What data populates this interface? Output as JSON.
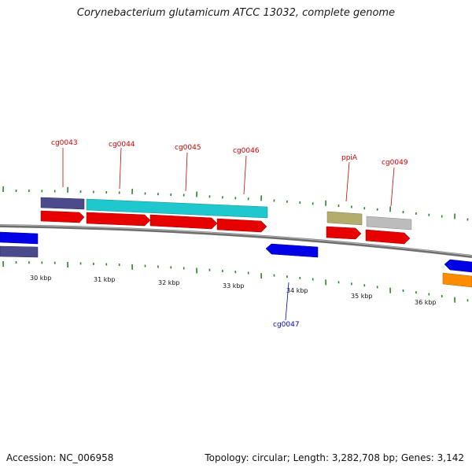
{
  "header": {
    "title": "Corynebacterium glutamicum ATCC 13032, complete genome"
  },
  "footer": {
    "accession": "Accession: NC_006958",
    "topology": "Topology: circular; Length: 3,282,708 bp; Genes: 3,142"
  },
  "colors": {
    "backbone": "#6e6e6e",
    "cds_forward": "#e60000",
    "cds_reverse": "#0000e6",
    "label_forward": "#cc0000",
    "label_reverse": "#0000cc",
    "tick": "#228b22",
    "cyan": "#1ec8cc",
    "slate": "#4a4a8c",
    "olive": "#b4ac6c",
    "grey": "#bcbcbc",
    "orange": "#ff8c00"
  },
  "tick_labels": [
    "30 kbp",
    "31 kbp",
    "32 kbp",
    "33 kbp",
    "34 kbp",
    "35 kbp",
    "36 kbp"
  ],
  "genes": [
    {
      "name": "cg0043",
      "strand": "forward"
    },
    {
      "name": "cg0044",
      "strand": "forward"
    },
    {
      "name": "cg0045",
      "strand": "forward"
    },
    {
      "name": "cg0046",
      "strand": "forward"
    },
    {
      "name": "ppiA",
      "strand": "forward"
    },
    {
      "name": "cg0049",
      "strand": "forward"
    },
    {
      "name": "cg0047",
      "strand": "reverse"
    }
  ]
}
